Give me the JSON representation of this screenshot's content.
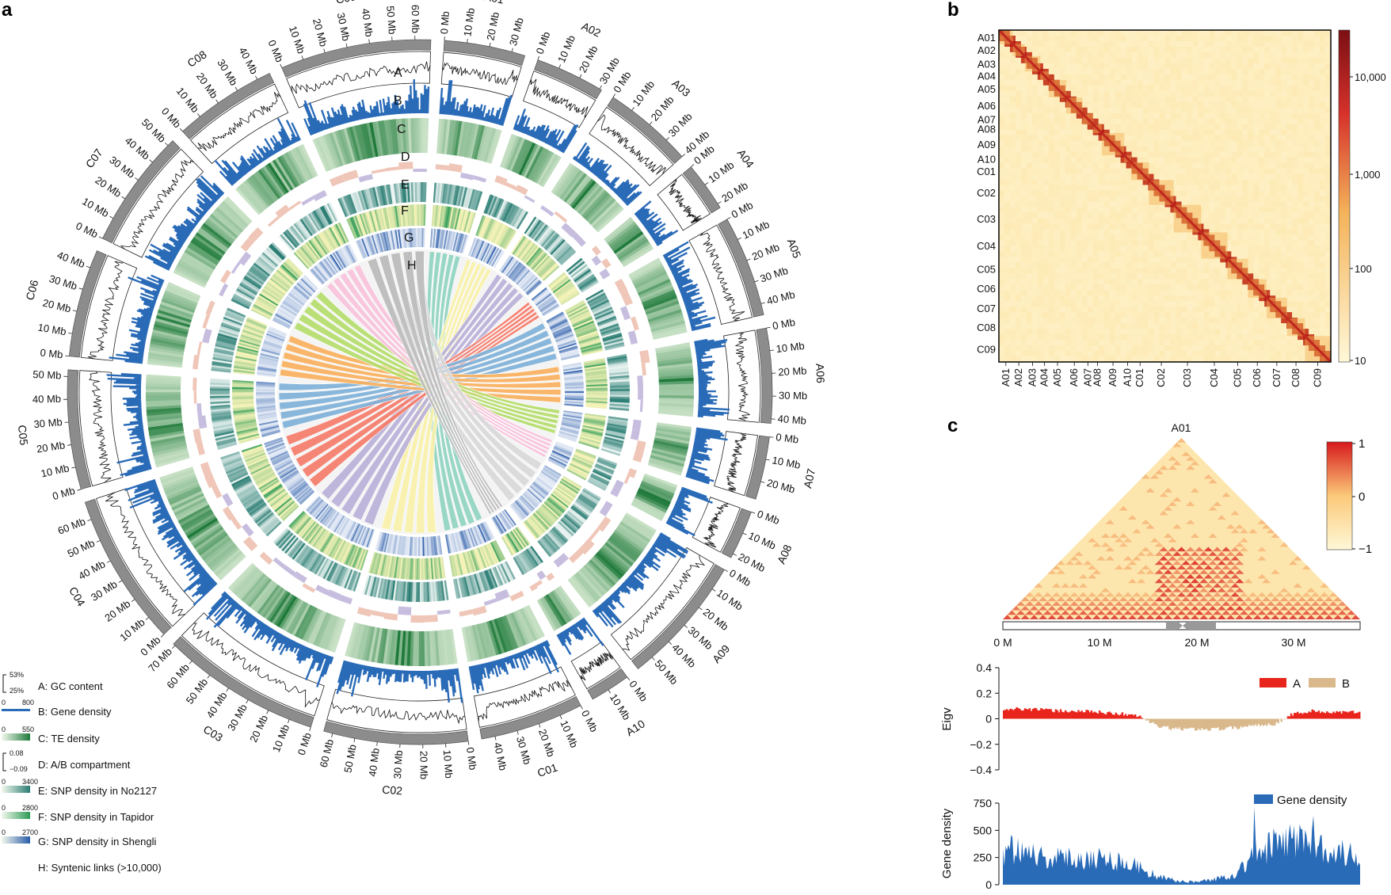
{
  "panels": {
    "a": "a",
    "b": "b",
    "c": "c"
  },
  "colors": {
    "gc": "#111111",
    "gene": "#2a6bb8",
    "te_light": "#e9f5e0",
    "te_dark": "#1f7a3b",
    "ab_pos": "#efc6b7",
    "ab_neg": "#c7bedf",
    "snp_no": "#2a7d73",
    "snp_tap": "#f6f3b8",
    "snp_tap_dark": "#2a9a55",
    "snp_sh_light": "#e7edf7",
    "snp_sh_dark": "#2a5ca8",
    "heat_low": "#fff8d8",
    "heat_mid": "#f4b35a",
    "heat_high": "#7b0f14",
    "comp_a": "#e8251c",
    "comp_b": "#d9b98c",
    "corr_low": "#fff8d8",
    "corr_high": "#d7191c"
  },
  "circos": {
    "track_letters": [
      "A",
      "B",
      "C",
      "D",
      "E",
      "F",
      "G",
      "H"
    ],
    "chromosomes": [
      {
        "name": "A01",
        "ticks": [
          "0 Mb",
          "10 Mb",
          "20 Mb",
          "30 Mb"
        ]
      },
      {
        "name": "A02",
        "ticks": [
          "0 Mb",
          "10 Mb",
          "20 Mb",
          "30 Mb"
        ]
      },
      {
        "name": "A03",
        "ticks": [
          "0 Mb",
          "10 Mb",
          "20 Mb",
          "30 Mb",
          "40 Mb"
        ]
      },
      {
        "name": "A04",
        "ticks": [
          "0 Mb",
          "10 Mb",
          "20 Mb"
        ]
      },
      {
        "name": "A05",
        "ticks": [
          "0 Mb",
          "10 Mb",
          "20 Mb",
          "30 Mb",
          "40 Mb"
        ]
      },
      {
        "name": "A06",
        "ticks": [
          "0 Mb",
          "10 Mb",
          "20 Mb",
          "30 Mb",
          "40 Mb"
        ]
      },
      {
        "name": "A07",
        "ticks": [
          "0 Mb",
          "10 Mb",
          "20 Mb",
          "30 Mb"
        ]
      },
      {
        "name": "A08",
        "ticks": [
          "0 Mb",
          "10 Mb",
          "20 Mb"
        ]
      },
      {
        "name": "A09",
        "ticks": [
          "0 Mb",
          "10 Mb",
          "20 Mb",
          "30 Mb",
          "40 Mb",
          "50 Mb",
          "60 Mb"
        ]
      },
      {
        "name": "A10",
        "ticks": [
          "0 Mb",
          "10 Mb",
          "20 Mb"
        ]
      },
      {
        "name": "C01",
        "ticks": [
          "0 Mb",
          "10 Mb",
          "20 Mb",
          "30 Mb",
          "40 Mb"
        ]
      },
      {
        "name": "C02",
        "ticks": [
          "0 Mb",
          "10 Mb",
          "20 Mb",
          "30 Mb",
          "40 Mb",
          "50 Mb",
          "60 Mb"
        ]
      },
      {
        "name": "C03",
        "ticks": [
          "0 Mb",
          "10 Mb",
          "20 Mb",
          "30 Mb",
          "40 Mb",
          "50 Mb",
          "60 Mb",
          "70 Mb"
        ]
      },
      {
        "name": "C04",
        "ticks": [
          "0 Mb",
          "10 Mb",
          "20 Mb",
          "30 Mb",
          "40 Mb",
          "50 Mb",
          "60 Mb",
          "70 Mb"
        ]
      },
      {
        "name": "C05",
        "ticks": [
          "0 Mb",
          "10 Mb",
          "20 Mb",
          "30 Mb",
          "40 Mb",
          "50 Mb"
        ]
      },
      {
        "name": "C06",
        "ticks": [
          "0 Mb",
          "10 Mb",
          "20 Mb",
          "30 Mb",
          "40 Mb",
          "50 Mb"
        ]
      },
      {
        "name": "C07",
        "ticks": [
          "0 Mb",
          "10 Mb",
          "20 Mb",
          "30 Mb",
          "40 Mb",
          "50 Mb"
        ]
      },
      {
        "name": "C08",
        "ticks": [
          "0 Mb",
          "10 Mb",
          "20 Mb",
          "30 Mb",
          "40 Mb"
        ]
      },
      {
        "name": "C09",
        "ticks": [
          "0 Mb",
          "10 Mb",
          "20 Mb",
          "30 Mb",
          "40 Mb",
          "50 Mb",
          "60 Mb"
        ]
      }
    ],
    "legend": [
      {
        "label": "A: GC content",
        "scale_top": "53%",
        "scale_bottom": "25%"
      },
      {
        "label": "B: Gene density",
        "scale_min": "0",
        "scale_max": "800"
      },
      {
        "label": "C: TE density",
        "scale_min": "0",
        "scale_max": "550"
      },
      {
        "label": "D: A/B compartment",
        "scale_top": "0.08",
        "scale_bottom": "−0.09"
      },
      {
        "label": "E: SNP density in No2127",
        "scale_min": "0",
        "scale_max": "3400"
      },
      {
        "label": "F: SNP density in Tapidor",
        "scale_min": "0",
        "scale_max": "2800"
      },
      {
        "label": "G: SNP density in Shengli",
        "scale_min": "0",
        "scale_max": "2700"
      },
      {
        "label": "H: Syntenic links (>10,000)"
      }
    ],
    "links": [
      {
        "from": "A01",
        "to": "C01",
        "color": "#8fd2c0"
      },
      {
        "from": "A02",
        "to": "C02",
        "color": "#f7f0a8"
      },
      {
        "from": "A03",
        "to": "C03",
        "color": "#bab0d8"
      },
      {
        "from": "A04",
        "to": "C04",
        "color": "#f47c6a"
      },
      {
        "from": "A05",
        "to": "C05",
        "color": "#7fb1d8"
      },
      {
        "from": "A06",
        "to": "C06",
        "color": "#f9b05d"
      },
      {
        "from": "A07",
        "to": "C07",
        "color": "#b4dc6a"
      },
      {
        "from": "A08",
        "to": "C08",
        "color": "#f7c1da"
      },
      {
        "from": "A09",
        "to": "C09",
        "color": "#d8d8d8"
      },
      {
        "from": "A10",
        "to": "C09",
        "color": "#bdbdbd"
      }
    ]
  },
  "chart_data": [
    {
      "type": "heatmap",
      "panel": "b",
      "row_labels": [
        "A01",
        "A02",
        "A03",
        "A04",
        "A05",
        "A06",
        "A07",
        "A08",
        "A09",
        "A10",
        "C01",
        "C02",
        "C03",
        "C04",
        "C05",
        "C06",
        "C07",
        "C08",
        "C09"
      ],
      "col_labels": [
        "A01",
        "A02",
        "A03",
        "A04",
        "A05",
        "A06",
        "A07",
        "A08",
        "A09",
        "A10",
        "C01",
        "C02",
        "C03",
        "C04",
        "C05",
        "C06",
        "C07",
        "C08",
        "C09"
      ],
      "chrom_sizes_mb": [
        36,
        31,
        40,
        22,
        45,
        42,
        28,
        22,
        58,
        18,
        46,
        64,
        71,
        68,
        53,
        48,
        53,
        46,
        67
      ],
      "colorbar": {
        "ticks": [
          "10",
          "100",
          "1,000",
          "10,000"
        ],
        "scale": "log"
      }
    },
    {
      "type": "heatmap",
      "panel": "c",
      "title": "A01",
      "x_ticks": [
        "0 M",
        "10 M",
        "20 M",
        "30 M"
      ],
      "xlim_mb": [
        0,
        37
      ],
      "colorbar": {
        "ticks": [
          "1",
          "0",
          "−1"
        ],
        "range": [
          -1,
          1
        ]
      }
    },
    {
      "type": "area",
      "panel": "c",
      "ylabel": "Eigv",
      "y_ticks": [
        "0.4",
        "0.2",
        "0",
        "−0.2",
        "−0.4"
      ],
      "ylim": [
        -0.4,
        0.4
      ],
      "legend": [
        {
          "name": "A",
          "color": "#e8251c"
        },
        {
          "name": "B",
          "color": "#d9b98c"
        }
      ],
      "x_mb": [
        0,
        2,
        4,
        6,
        8,
        10,
        12,
        14,
        16,
        18,
        20,
        22,
        24,
        26,
        28,
        30,
        32,
        34,
        36
      ],
      "values": [
        0.07,
        0.08,
        0.07,
        0.06,
        0.06,
        0.05,
        0.04,
        0.02,
        -0.06,
        -0.08,
        -0.08,
        -0.08,
        -0.07,
        -0.05,
        -0.04,
        0.04,
        0.06,
        0.05,
        0.05
      ]
    },
    {
      "type": "area",
      "panel": "c",
      "ylabel": "Gene density",
      "y_ticks": [
        "750",
        "500",
        "250",
        "0"
      ],
      "ylim": [
        0,
        750
      ],
      "legend": [
        {
          "name": "Gene density",
          "color": "#2a6bb8"
        }
      ],
      "x_mb": [
        0,
        2,
        4,
        6,
        8,
        10,
        12,
        14,
        16,
        18,
        20,
        22,
        24,
        26,
        28,
        30,
        32,
        34,
        36
      ],
      "values": [
        380,
        420,
        300,
        280,
        300,
        290,
        260,
        200,
        90,
        40,
        30,
        60,
        110,
        320,
        420,
        480,
        520,
        380,
        320
      ]
    }
  ]
}
